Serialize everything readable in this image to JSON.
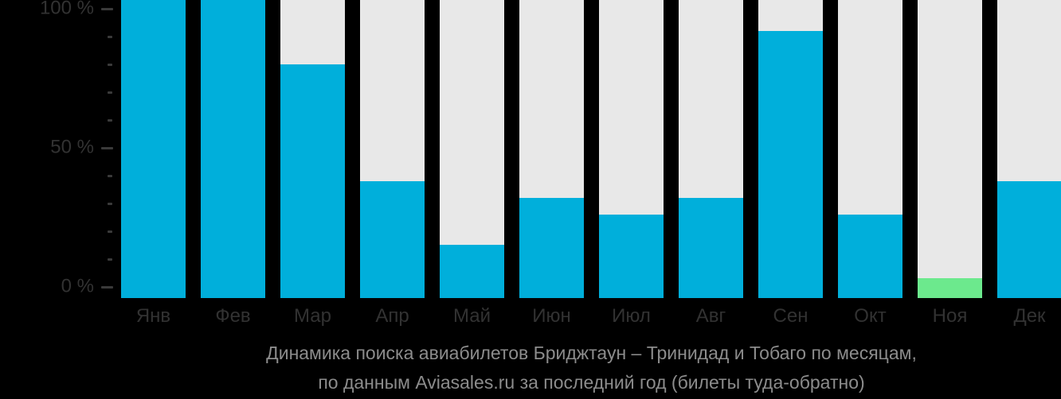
{
  "chart_data": {
    "type": "bar",
    "title": "Динамика поиска авиабилетов Бриджтаун – Тринидад и Тобаго по месяцам,",
    "subtitle": "по данным Aviasales.ru за последний год (билеты туда-обратно)",
    "categories": [
      "Янв",
      "Фев",
      "Мар",
      "Апр",
      "Май",
      "Июн",
      "Июл",
      "Авг",
      "Сен",
      "Окт",
      "Ноя",
      "Дек"
    ],
    "values": [
      100,
      100,
      80,
      38,
      15,
      32,
      26,
      32,
      92,
      26,
      3,
      38
    ],
    "highlight_index": 10,
    "xlabel": "",
    "ylabel": "",
    "ylim": [
      0,
      100
    ],
    "yticks": [
      {
        "value": 100,
        "label": "100 %"
      },
      {
        "value": 50,
        "label": "50 %"
      },
      {
        "value": 0,
        "label": "0 %"
      }
    ],
    "minor_tick_values": [
      10,
      20,
      30,
      40,
      60,
      70,
      80,
      90
    ],
    "grid": "off",
    "legend": "none",
    "colors": {
      "background": "#000000",
      "bar": "#00AFDB",
      "bar_highlight": "#6CE98D",
      "bar_track": "#E8E8E8",
      "axis_text": "#323232",
      "tick": "#3A3A3A",
      "title_text": "#8C8C8C"
    }
  }
}
